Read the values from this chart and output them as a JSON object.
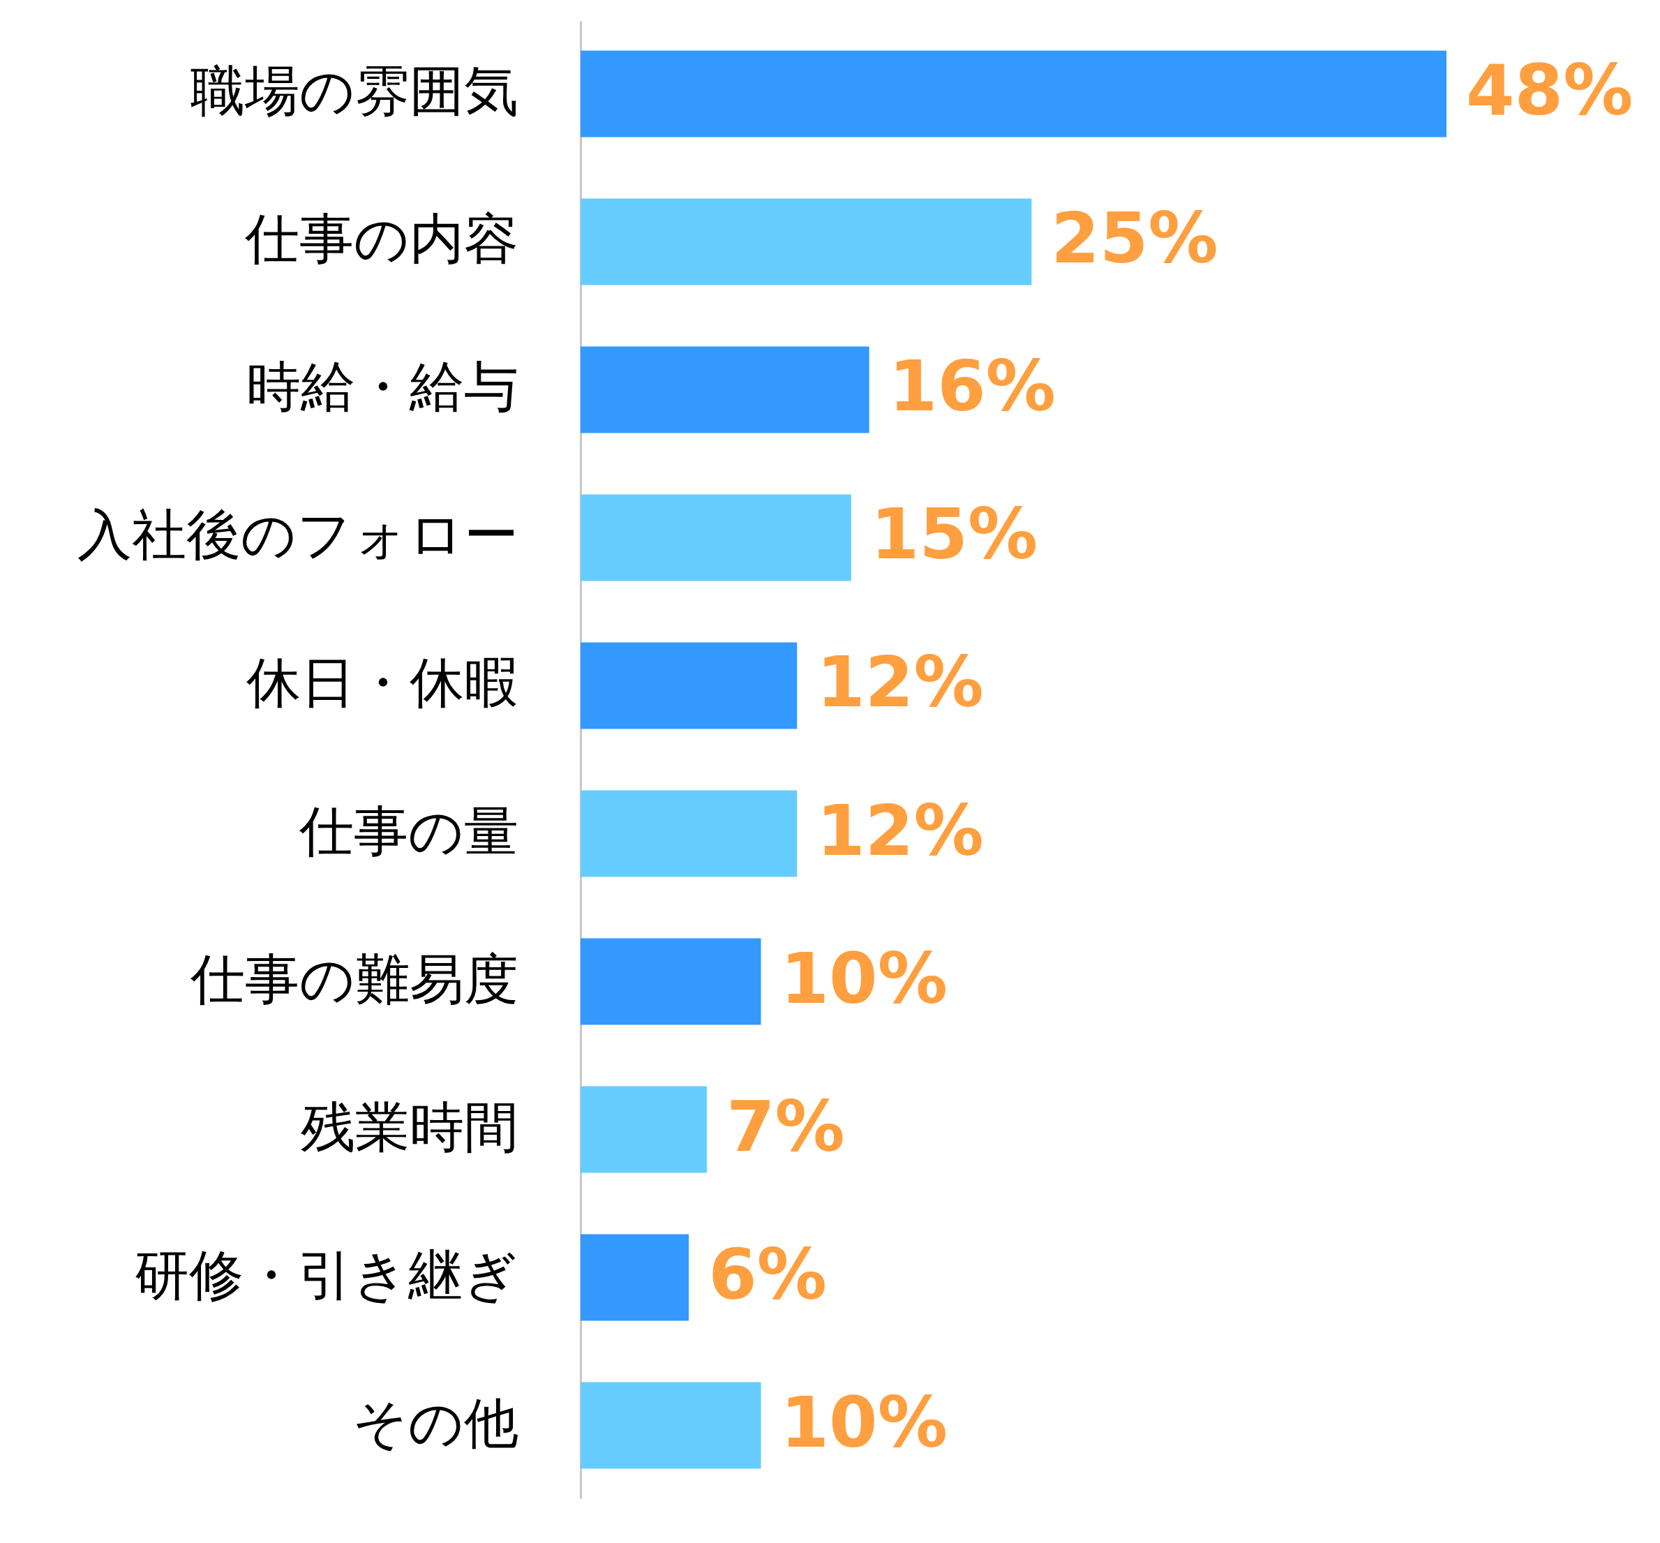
{
  "chart_data": {
    "type": "bar",
    "orientation": "horizontal",
    "categories": [
      "職場の雰囲気",
      "仕事の内容",
      "時給・給与",
      "入社後のフォロー",
      "休日・休暇",
      "仕事の量",
      "仕事の難易度",
      "残業時間",
      "研修・引き継ぎ",
      "その他"
    ],
    "values": [
      48,
      25,
      16,
      15,
      12,
      12,
      10,
      7,
      6,
      10
    ],
    "colors": [
      "#3399ff",
      "#66ccff",
      "#3399ff",
      "#66ccff",
      "#3399ff",
      "#66ccff",
      "#3399ff",
      "#66ccff",
      "#3399ff",
      "#66ccff"
    ],
    "value_labels": [
      "48%",
      "25%",
      "16%",
      "15%",
      "12%",
      "12%",
      "10%",
      "7%",
      "6%",
      "10%"
    ]
  }
}
